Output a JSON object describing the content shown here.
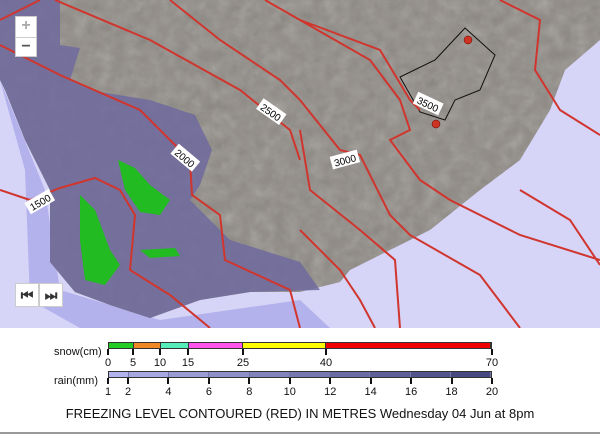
{
  "map": {
    "contour_labels": [
      "1500",
      "2000",
      "2500",
      "3000",
      "3500"
    ],
    "colors": {
      "ocean": "#d6d4f7",
      "land": "#8e8984",
      "rain": "#6e6a9e",
      "contour": "#d0352e"
    }
  },
  "controls": {
    "zoom_in": "+",
    "zoom_out": "−",
    "step_back": "⏮",
    "step_forward": "⏭"
  },
  "legend": {
    "snow_label": "snow(cm)",
    "snow_ticks": [
      "0",
      "5",
      "10",
      "15",
      "25",
      "40",
      "70"
    ],
    "snow_colors": [
      "#22cc22",
      "#ee8822",
      "#55eebb",
      "#ff55ee",
      "#ffff00",
      "#ee0000"
    ],
    "rain_label": "rain(mm)",
    "rain_ticks": [
      "1",
      "2",
      "4",
      "6",
      "8",
      "10",
      "12",
      "14",
      "16",
      "18",
      "20"
    ],
    "rain_colors": [
      "#b4b4ec",
      "#a8a8e0",
      "#9c9cd4",
      "#9090c8",
      "#8484bc",
      "#7878b0",
      "#6c6ca4",
      "#606098",
      "#54548c",
      "#484880"
    ],
    "title": "FREEZING LEVEL CONTOURED (RED) IN METRES Wednesday 04 Jun at 8pm"
  }
}
